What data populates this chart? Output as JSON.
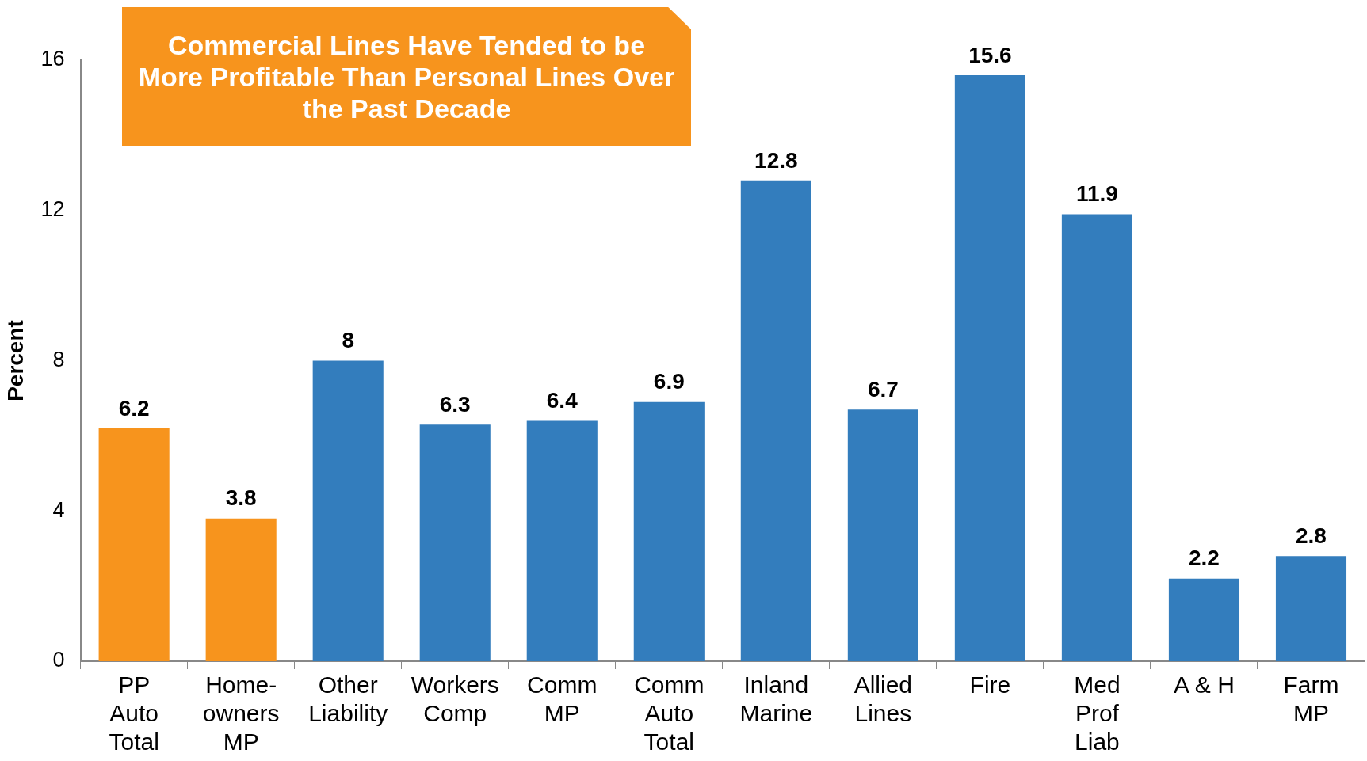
{
  "chart_data": {
    "type": "bar",
    "title": "Commercial Lines Have Tended to be More Profitable Than Personal Lines Over the Past Decade",
    "ylabel": "Percent",
    "categories": [
      "PP Auto Total",
      "Home-owners MP",
      "Other Liability",
      "Workers Comp",
      "Comm MP",
      "Comm Auto Total",
      "Inland Marine",
      "Allied Lines",
      "Fire",
      "Med Prof Liab",
      "A & H",
      "Farm MP"
    ],
    "values": [
      6.2,
      3.8,
      8,
      6.3,
      6.4,
      6.9,
      12.8,
      6.7,
      15.6,
      11.9,
      2.2,
      2.8
    ],
    "colors": [
      "#f7941d",
      "#f7941d",
      "#337dbd",
      "#337dbd",
      "#337dbd",
      "#337dbd",
      "#337dbd",
      "#337dbd",
      "#337dbd",
      "#337dbd",
      "#337dbd",
      "#337dbd"
    ],
    "ylim": [
      0,
      16
    ],
    "yticks": [
      0,
      4,
      8,
      12,
      16
    ],
    "grid": false,
    "legend": false,
    "data_labels": true
  }
}
